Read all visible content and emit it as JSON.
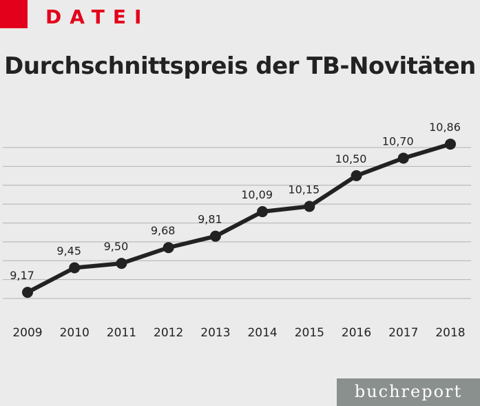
{
  "header": {
    "brand": "DATEI"
  },
  "footer": {
    "label": "buchreport"
  },
  "colors": {
    "accent": "#e3001b",
    "line": "#222222",
    "grid": "#b0b0b0",
    "footer_bg": "#8a908d"
  },
  "chart_data": {
    "type": "line",
    "title": "Durchschnittspreis der TB-Novitäten",
    "xlabel": "",
    "ylabel": "",
    "categories": [
      "2009",
      "2010",
      "2011",
      "2012",
      "2013",
      "2014",
      "2015",
      "2016",
      "2017",
      "2018"
    ],
    "values": [
      9.17,
      9.45,
      9.5,
      9.68,
      9.81,
      10.09,
      10.15,
      10.5,
      10.7,
      10.86
    ],
    "data_labels": [
      "9,17",
      "9,45",
      "9,50",
      "9,68",
      "9,81",
      "10,09",
      "10,15",
      "10,50",
      "10,70",
      "10,86"
    ],
    "ylim": [
      9.1,
      10.9
    ],
    "grid": true,
    "legend": "none"
  }
}
